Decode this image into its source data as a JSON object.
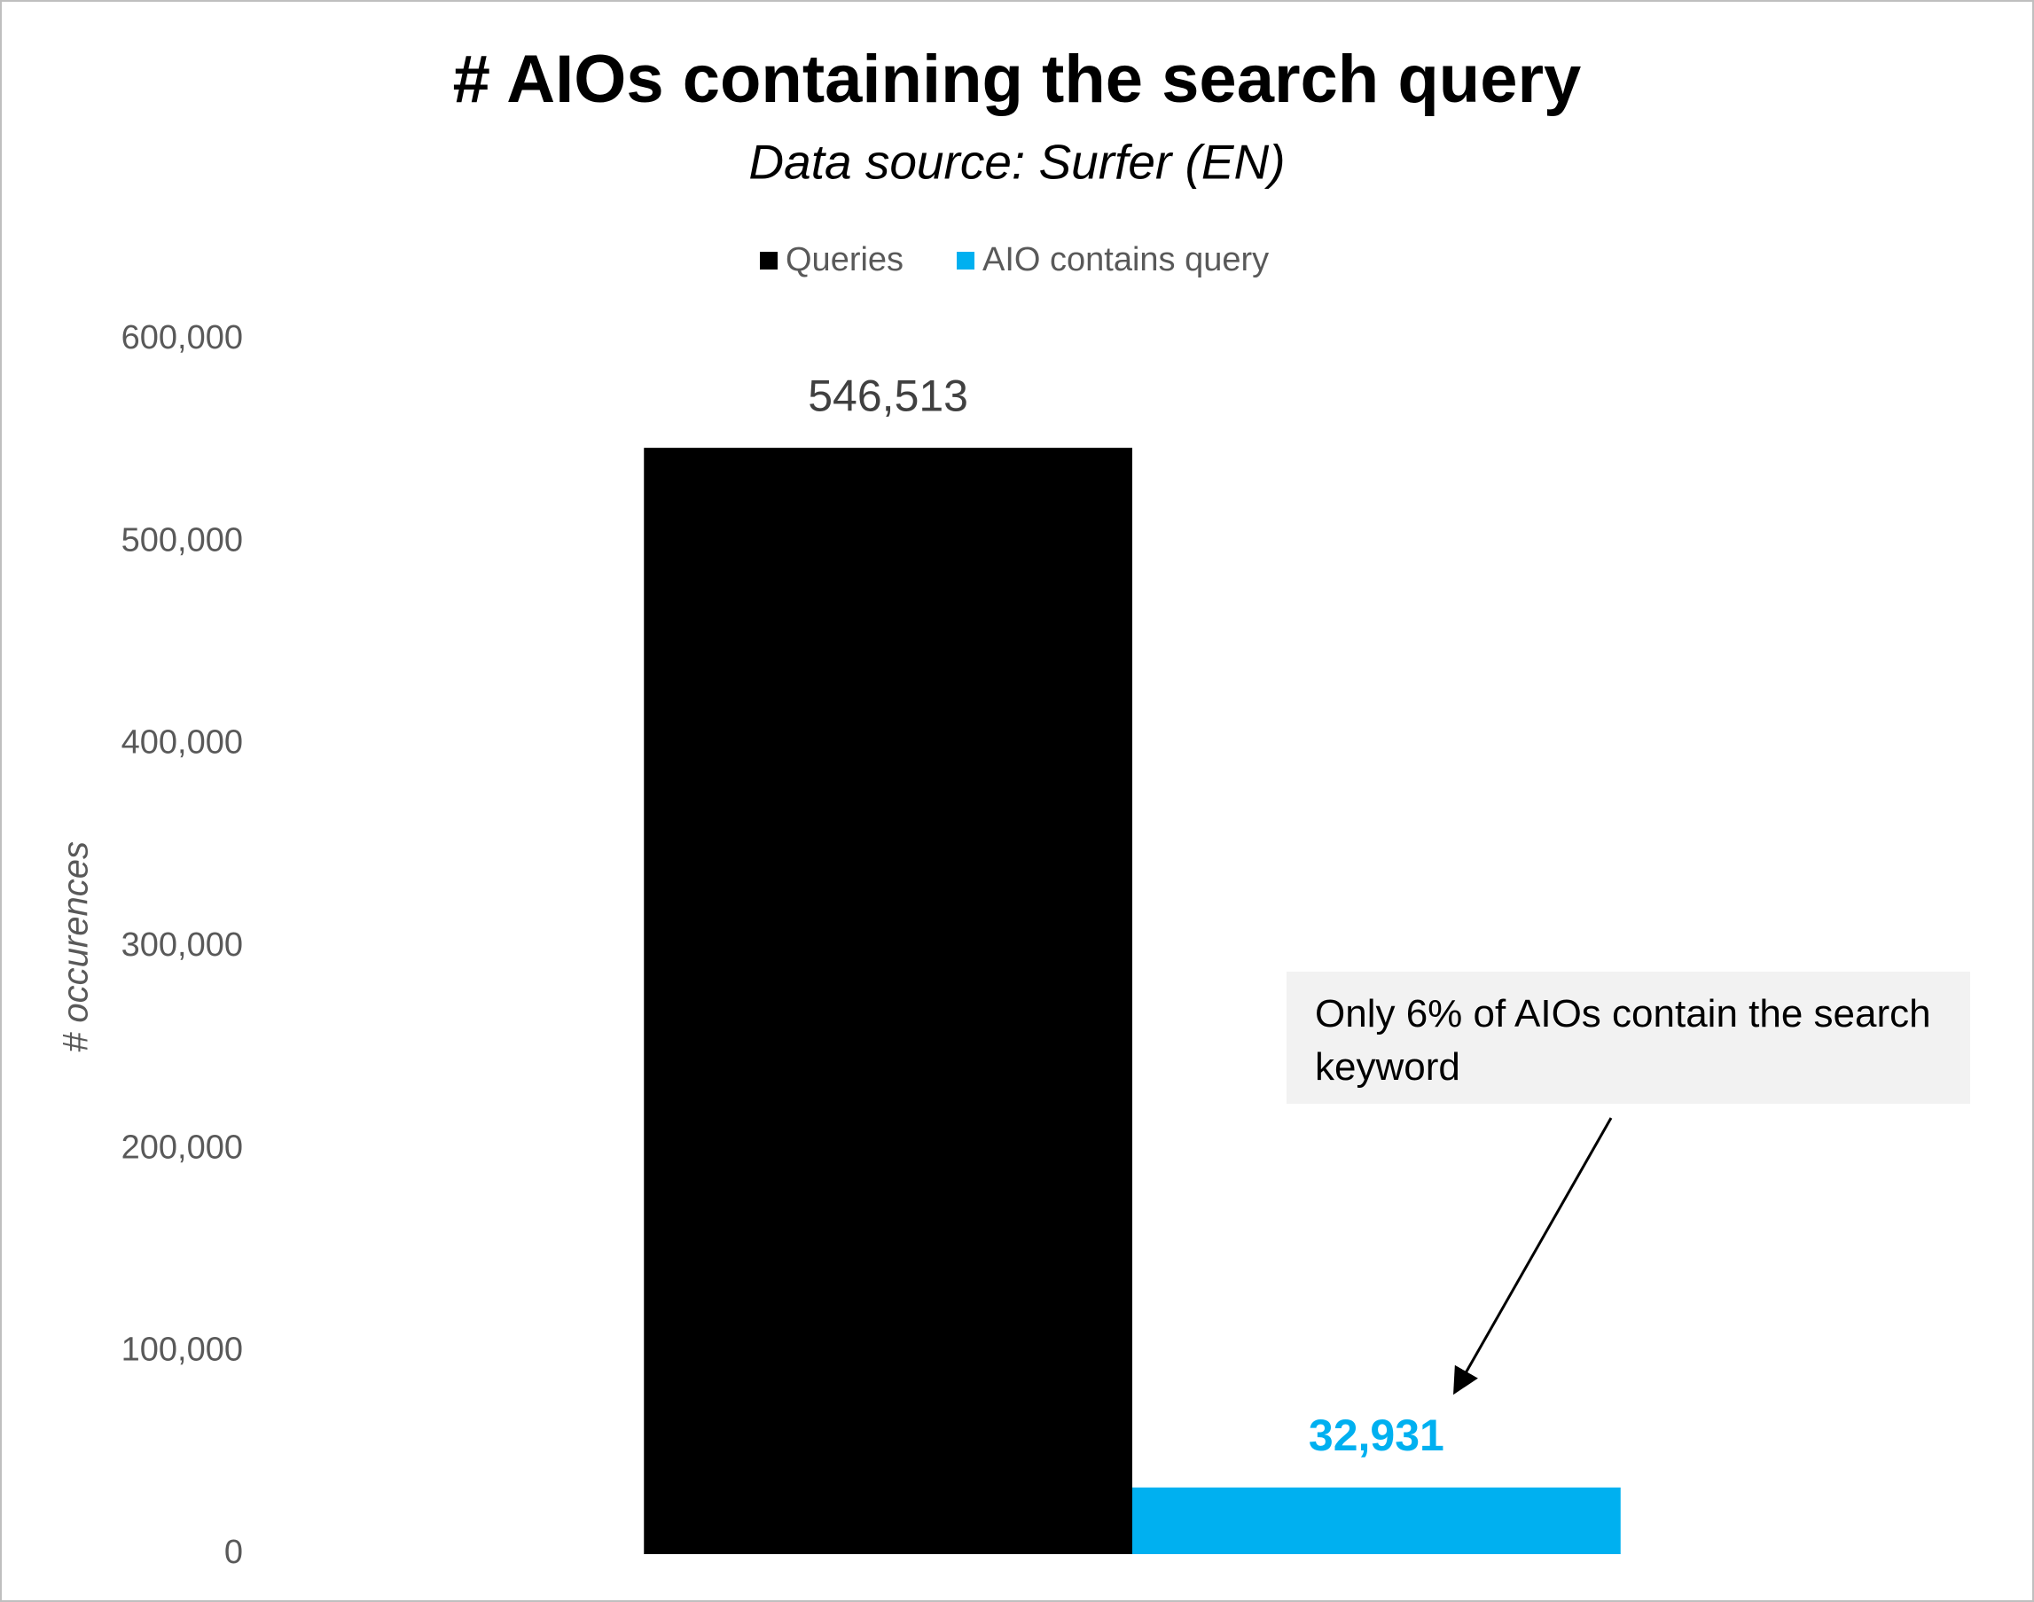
{
  "chart_data": {
    "type": "bar",
    "title": "# AIOs containing the search query",
    "subtitle": "Data source: Surfer (EN)",
    "y_label": "# occurences",
    "categories": [
      null
    ],
    "series": [
      {
        "name": "Queries",
        "color": "#000000",
        "values": [
          546513
        ],
        "value_labels": [
          "546,513"
        ]
      },
      {
        "name": "AIO contains query",
        "color": "#00b0f0",
        "values": [
          32931
        ],
        "value_labels": [
          "32,931"
        ]
      }
    ],
    "ylim": [
      0,
      600000
    ],
    "yticks": [
      0,
      {
        "value": 100000,
        "label": "100,000"
      },
      {
        "value": 200000,
        "label": "200,000"
      },
      {
        "value": 300000,
        "label": "300,000"
      },
      {
        "value": 400000,
        "label": "400,000"
      },
      {
        "value": 500000,
        "label": "500,000"
      },
      {
        "value": 600000,
        "label": "600,000"
      }
    ],
    "grid": false,
    "legend": "top",
    "annotation": "Only 6% of AIOs contain the search keyword"
  }
}
